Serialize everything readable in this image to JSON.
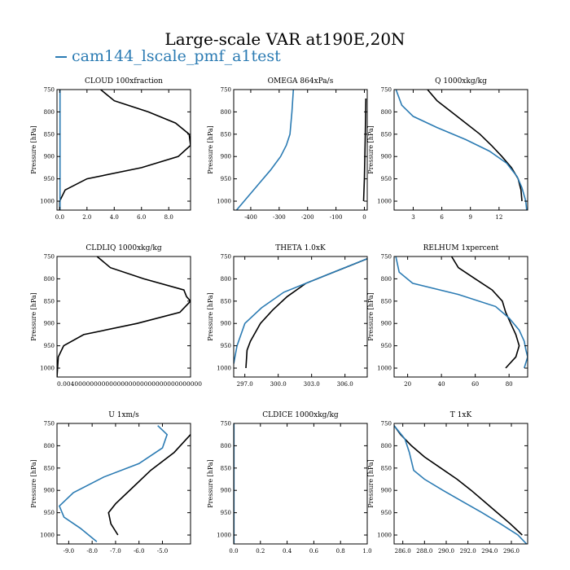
{
  "title": "Large-scale VAR at190E,20N",
  "legend": {
    "label": "cam144_lscale_pmf_a1test",
    "color": "#2b7bb3"
  },
  "colors": {
    "black_series": "#000000",
    "blue_series": "#2b7bb3"
  },
  "chart_data": [
    {
      "type": "line",
      "title": "CLOUD  100xfraction",
      "ylabel": "Pressure [hPa]",
      "xlim": [
        -0.2,
        9.6
      ],
      "ylim": [
        1020,
        750
      ],
      "xticks": [
        0,
        2,
        4,
        6,
        8
      ],
      "xticklabels": [
        "0.0",
        "2.0",
        "4.0",
        "6.0",
        "8.0"
      ],
      "yticks": [
        750,
        800,
        850,
        900,
        950,
        1000
      ],
      "series": [
        {
          "color": "#000000",
          "points": [
            [
              3.0,
              750
            ],
            [
              4.0,
              775
            ],
            [
              6.5,
              800
            ],
            [
              8.5,
              825
            ],
            [
              9.5,
              850
            ],
            [
              9.6,
              875
            ],
            [
              8.7,
              900
            ],
            [
              6.0,
              925
            ],
            [
              2.0,
              950
            ],
            [
              0.4,
              975
            ],
            [
              0.0,
              1000
            ],
            [
              0.0,
              1020
            ]
          ]
        },
        {
          "color": "#2b7bb3",
          "points": [
            [
              0.02,
              750
            ],
            [
              0.02,
              1020
            ]
          ]
        }
      ]
    },
    {
      "type": "line",
      "title": "OMEGA  864xPa/s",
      "ylabel": "Pressure [hPa]",
      "xlim": [
        -460,
        10
      ],
      "ylim": [
        1020,
        750
      ],
      "xticks": [
        -400,
        -300,
        -200,
        -100,
        0
      ],
      "xticklabels": [
        "-400",
        "-300",
        "-200",
        "-100",
        "0"
      ],
      "yticks": [
        750,
        800,
        850,
        900,
        950,
        1000
      ],
      "series": [
        {
          "color": "#2b7bb3",
          "points": [
            [
              -250,
              750
            ],
            [
              -255,
              800
            ],
            [
              -262,
              850
            ],
            [
              -275,
              875
            ],
            [
              -295,
              900
            ],
            [
              -330,
              930
            ],
            [
              -370,
              960
            ],
            [
              -410,
              990
            ],
            [
              -450,
              1020
            ]
          ]
        },
        {
          "color": "#000000",
          "points": [
            [
              5,
              770
            ],
            [
              3,
              850
            ],
            [
              0,
              950
            ],
            [
              -3,
              1000
            ]
          ]
        }
      ]
    },
    {
      "type": "line",
      "title": "Q  1000xkg/kg",
      "ylabel": "Pressure [hPa]",
      "xlim": [
        1.0,
        15.0
      ],
      "ylim": [
        1020,
        750
      ],
      "xticks": [
        3,
        6,
        9,
        12
      ],
      "xticklabels": [
        "3",
        "6",
        "9",
        "12"
      ],
      "yticks": [
        750,
        800,
        850,
        900,
        950,
        1000
      ],
      "series": [
        {
          "color": "#000000",
          "points": [
            [
              4.5,
              750
            ],
            [
              5.5,
              775
            ],
            [
              7.0,
              800
            ],
            [
              8.5,
              825
            ],
            [
              10.0,
              850
            ],
            [
              11.2,
              875
            ],
            [
              12.3,
              900
            ],
            [
              13.3,
              925
            ],
            [
              14.0,
              950
            ],
            [
              14.3,
              975
            ],
            [
              14.4,
              1000
            ]
          ]
        },
        {
          "color": "#2b7bb3",
          "points": [
            [
              1.2,
              750
            ],
            [
              1.8,
              785
            ],
            [
              3.0,
              810
            ],
            [
              5.5,
              835
            ],
            [
              8.5,
              862
            ],
            [
              11.0,
              888
            ],
            [
              12.8,
              915
            ],
            [
              13.9,
              945
            ],
            [
              14.4,
              970
            ],
            [
              14.8,
              1000
            ],
            [
              14.9,
              1020
            ]
          ]
        }
      ]
    },
    {
      "type": "line",
      "title": "CLDLIQ  1000xkg/kg",
      "ylabel": "Pressure [hPa]",
      "xlim": [
        0.0,
        1.0
      ],
      "ylim": [
        1020,
        750
      ],
      "xticks": [],
      "xticklabels": [],
      "x_tick_text": "0.004000000000000000000000000000000000",
      "yticks": [
        750,
        800,
        850,
        900,
        950,
        1000
      ],
      "series": [
        {
          "color": "#000000",
          "points": [
            [
              0.3,
              750
            ],
            [
              0.4,
              775
            ],
            [
              0.65,
              800
            ],
            [
              0.95,
              825
            ],
            [
              0.97,
              840
            ],
            [
              1.0,
              850
            ],
            [
              0.92,
              875
            ],
            [
              0.6,
              900
            ],
            [
              0.2,
              925
            ],
            [
              0.05,
              950
            ],
            [
              0.01,
              975
            ],
            [
              0.0,
              1020
            ]
          ]
        }
      ]
    },
    {
      "type": "line",
      "title": "THETA  1.0xK",
      "ylabel": "Pressure [hPa]",
      "xlim": [
        296.0,
        308.0
      ],
      "ylim": [
        1020,
        750
      ],
      "xticks": [
        297,
        300,
        303,
        306
      ],
      "xticklabels": [
        "297.0",
        "300.0",
        "303.0",
        "306.0"
      ],
      "yticks": [
        750,
        800,
        850,
        900,
        950,
        1000
      ],
      "series": [
        {
          "color": "#000000",
          "points": [
            [
              308.0,
              755
            ],
            [
              306.5,
              770
            ],
            [
              304.5,
              790
            ],
            [
              302.5,
              810
            ],
            [
              300.8,
              840
            ],
            [
              299.5,
              870
            ],
            [
              298.4,
              900
            ],
            [
              297.5,
              940
            ],
            [
              297.2,
              960
            ],
            [
              297.1,
              1000
            ]
          ]
        },
        {
          "color": "#2b7bb3",
          "points": [
            [
              308.0,
              755
            ],
            [
              305.5,
              780
            ],
            [
              303.0,
              805
            ],
            [
              300.5,
              830
            ],
            [
              298.5,
              865
            ],
            [
              297.0,
              900
            ],
            [
              296.3,
              950
            ],
            [
              296.0,
              990
            ]
          ]
        }
      ]
    },
    {
      "type": "line",
      "title": "RELHUM  1xpercent",
      "ylabel": "Pressure [hPa]",
      "xlim": [
        12,
        91
      ],
      "ylim": [
        1020,
        750
      ],
      "xticks": [
        20,
        40,
        60,
        80
      ],
      "xticklabels": [
        "20",
        "40",
        "60",
        "80"
      ],
      "yticks": [
        750,
        800,
        850,
        900,
        950,
        1000
      ],
      "series": [
        {
          "color": "#000000",
          "points": [
            [
              46,
              750
            ],
            [
              50,
              775
            ],
            [
              60,
              800
            ],
            [
              70,
              825
            ],
            [
              76,
              850
            ],
            [
              78,
              875
            ],
            [
              81,
              900
            ],
            [
              84,
              925
            ],
            [
              86,
              950
            ],
            [
              84,
              975
            ],
            [
              78,
              1000
            ]
          ]
        },
        {
          "color": "#2b7bb3",
          "points": [
            [
              13,
              750
            ],
            [
              15,
              785
            ],
            [
              23,
              810
            ],
            [
              50,
              835
            ],
            [
              72,
              862
            ],
            [
              80,
              888
            ],
            [
              86,
              915
            ],
            [
              89,
              940
            ],
            [
              90,
              960
            ],
            [
              91,
              975
            ],
            [
              89,
              1000
            ]
          ]
        }
      ]
    },
    {
      "type": "line",
      "title": "U  1xm/s",
      "ylabel": "Pressure [hPa]",
      "xlim": [
        -9.5,
        -3.8
      ],
      "ylim": [
        1020,
        750
      ],
      "xticks": [
        -9,
        -8,
        -7,
        -6,
        -5
      ],
      "xticklabels": [
        "-9.0",
        "-8.0",
        "-7.0",
        "-6.0",
        "-5.0"
      ],
      "yticks": [
        750,
        800,
        850,
        900,
        950,
        1000
      ],
      "series": [
        {
          "color": "#000000",
          "points": [
            [
              -3.8,
              775
            ],
            [
              -4.5,
              815
            ],
            [
              -5.5,
              855
            ],
            [
              -6.3,
              895
            ],
            [
              -7.0,
              930
            ],
            [
              -7.3,
              950
            ],
            [
              -7.2,
              975
            ],
            [
              -6.9,
              1000
            ]
          ]
        },
        {
          "color": "#2b7bb3",
          "points": [
            [
              -5.2,
              755
            ],
            [
              -4.8,
              775
            ],
            [
              -5.0,
              805
            ],
            [
              -6.0,
              840
            ],
            [
              -7.5,
              870
            ],
            [
              -8.8,
              905
            ],
            [
              -9.4,
              935
            ],
            [
              -9.2,
              960
            ],
            [
              -8.5,
              985
            ],
            [
              -7.8,
              1015
            ]
          ]
        }
      ]
    },
    {
      "type": "line",
      "title": "CLDICE  1000xkg/kg",
      "ylabel": "Pressure [hPa]",
      "xlim": [
        0.0,
        1.0
      ],
      "ylim": [
        1020,
        750
      ],
      "xticks": [
        0,
        0.2,
        0.4,
        0.6,
        0.8,
        1.0
      ],
      "xticklabels": [
        "0.0",
        "0.2",
        "0.4",
        "0.6",
        "0.8",
        "1.0"
      ],
      "yticks": [
        750,
        800,
        850,
        900,
        950,
        1000
      ],
      "series": [
        {
          "color": "#2b7bb3",
          "points": [
            [
              0.002,
              750
            ],
            [
              0.002,
              1020
            ]
          ]
        }
      ]
    },
    {
      "type": "line",
      "title": "T  1xK",
      "ylabel": "Pressure [hPa]",
      "xlim": [
        285.2,
        297.5
      ],
      "ylim": [
        1020,
        750
      ],
      "xticks": [
        286,
        288,
        290,
        292,
        294,
        296
      ],
      "xticklabels": [
        "286.0",
        "288.0",
        "290.0",
        "292.0",
        "294.0",
        "296.0"
      ],
      "yticks": [
        750,
        800,
        850,
        900,
        950,
        1000
      ],
      "series": [
        {
          "color": "#000000",
          "points": [
            [
              285.2,
              755
            ],
            [
              285.8,
              775
            ],
            [
              286.8,
              800
            ],
            [
              288.0,
              825
            ],
            [
              289.5,
              850
            ],
            [
              291.0,
              875
            ],
            [
              292.3,
              900
            ],
            [
              293.5,
              925
            ],
            [
              294.7,
              950
            ],
            [
              295.9,
              975
            ],
            [
              297.0,
              1000
            ]
          ]
        },
        {
          "color": "#2b7bb3",
          "points": [
            [
              285.2,
              755
            ],
            [
              286.2,
              785
            ],
            [
              286.6,
              815
            ],
            [
              287.0,
              855
            ],
            [
              288.0,
              875
            ],
            [
              289.7,
              900
            ],
            [
              291.5,
              925
            ],
            [
              293.3,
              950
            ],
            [
              295.0,
              975
            ],
            [
              296.6,
              1000
            ],
            [
              297.4,
              1020
            ]
          ]
        }
      ]
    }
  ]
}
